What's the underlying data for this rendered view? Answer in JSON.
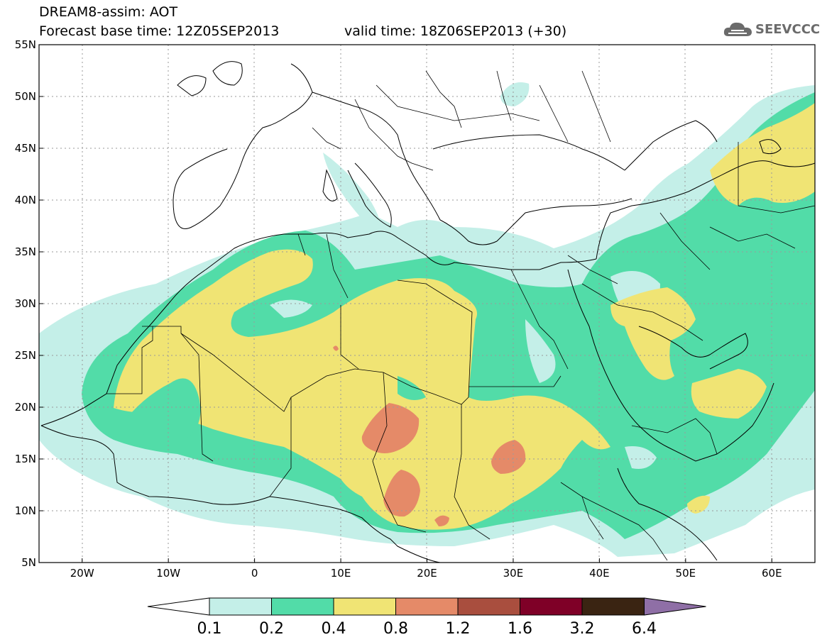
{
  "header": {
    "title_line1": "DREAM8-assim: AOT",
    "title_line2": "Forecast base time: 12Z05SEP2013",
    "valid_time": "valid time: 18Z06SEP2013 (+30)",
    "logo_text": "SEEVCCC"
  },
  "map": {
    "lon_range": [
      -25,
      65
    ],
    "lat_range": [
      5,
      55
    ],
    "lon_ticks": [
      {
        "value": -20,
        "label": "20W"
      },
      {
        "value": -10,
        "label": "10W"
      },
      {
        "value": 0,
        "label": "0"
      },
      {
        "value": 10,
        "label": "10E"
      },
      {
        "value": 20,
        "label": "20E"
      },
      {
        "value": 30,
        "label": "30E"
      },
      {
        "value": 40,
        "label": "40E"
      },
      {
        "value": 50,
        "label": "50E"
      },
      {
        "value": 60,
        "label": "60E"
      }
    ],
    "lat_ticks": [
      {
        "value": 55,
        "label": "55N"
      },
      {
        "value": 50,
        "label": "50N"
      },
      {
        "value": 45,
        "label": "45N"
      },
      {
        "value": 40,
        "label": "40N"
      },
      {
        "value": 35,
        "label": "35N"
      },
      {
        "value": 30,
        "label": "30N"
      },
      {
        "value": 25,
        "label": "25N"
      },
      {
        "value": 20,
        "label": "20N"
      },
      {
        "value": 15,
        "label": "15N"
      },
      {
        "value": 10,
        "label": "10N"
      },
      {
        "value": 5,
        "label": "5N"
      }
    ],
    "grid": "dotted"
  },
  "colorbar": {
    "levels": [
      "0.1",
      "0.2",
      "0.4",
      "0.8",
      "1.2",
      "1.6",
      "3.2",
      "6.4"
    ],
    "colors": [
      "#ffffff",
      "#c4efe8",
      "#52dca8",
      "#f0e474",
      "#e58a68",
      "#a94e3e",
      "#7f0027",
      "#3a2412",
      "#8f6fa6"
    ]
  },
  "colors": {
    "band1": "#c4efe8",
    "band2": "#52dca8",
    "band3": "#f0e474",
    "band4": "#e58a68"
  }
}
